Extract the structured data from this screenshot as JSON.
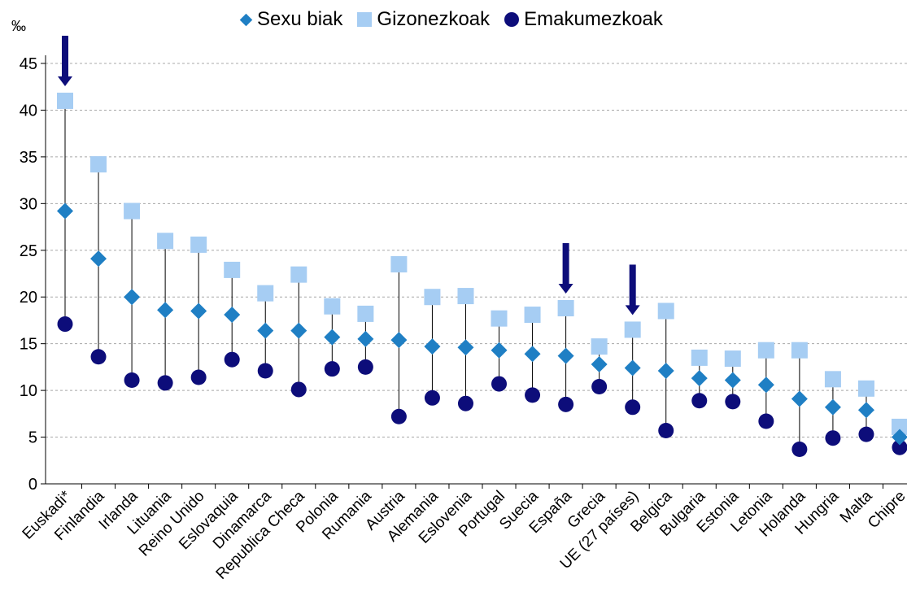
{
  "chart_data": {
    "type": "scatter",
    "unit_label": "‰",
    "ylim": [
      0,
      45
    ],
    "yticks": [
      0,
      5,
      10,
      15,
      20,
      25,
      30,
      35,
      40,
      45
    ],
    "grid": true,
    "legend_position": "top",
    "categories": [
      "Euskadi*",
      "Finlandia",
      "Irlanda",
      "Lituania",
      "Reino Unido",
      "Eslovaquia",
      "Dinamarca",
      "Republica Checa",
      "Polonia",
      "Rumania",
      "Austria",
      "Alemania",
      "Eslovenia",
      "Portugal",
      "Suecia",
      "España",
      "Grecia",
      "UE (27 países)",
      "Belgica",
      "Bulgaria",
      "Estonia",
      "Letonia",
      "Holanda",
      "Hungria",
      "Malta",
      "Chipre"
    ],
    "highlighted": [
      "Euskadi*",
      "España",
      "UE (27 países)"
    ],
    "series": [
      {
        "name": "Sexu biak",
        "color": "#1f7fc4",
        "marker": "diamond",
        "values": [
          29.2,
          24.1,
          20.0,
          18.6,
          18.5,
          18.1,
          16.4,
          16.4,
          15.7,
          15.5,
          15.4,
          14.7,
          14.6,
          14.3,
          13.9,
          13.7,
          12.8,
          12.4,
          12.1,
          11.3,
          11.1,
          10.6,
          9.1,
          8.2,
          7.9,
          5.0
        ]
      },
      {
        "name": "Gizonezkoak",
        "color": "#a6cdf3",
        "marker": "square",
        "values": [
          41.0,
          34.2,
          29.2,
          26.0,
          25.6,
          22.9,
          20.4,
          22.4,
          19.0,
          18.2,
          23.5,
          20.0,
          20.1,
          17.7,
          18.1,
          18.8,
          14.7,
          16.5,
          18.5,
          13.5,
          13.4,
          14.3,
          14.3,
          11.2,
          10.2,
          6.1
        ]
      },
      {
        "name": "Emakumezkoak",
        "color": "#0d0d7a",
        "marker": "circle",
        "values": [
          17.1,
          13.6,
          11.1,
          10.8,
          11.4,
          13.3,
          12.1,
          10.1,
          12.3,
          12.5,
          7.2,
          9.2,
          8.6,
          10.7,
          9.5,
          8.5,
          10.4,
          8.2,
          5.7,
          8.9,
          8.8,
          6.7,
          3.7,
          4.9,
          5.3,
          3.9
        ]
      }
    ],
    "arrow_color": "#0d0d7a"
  }
}
